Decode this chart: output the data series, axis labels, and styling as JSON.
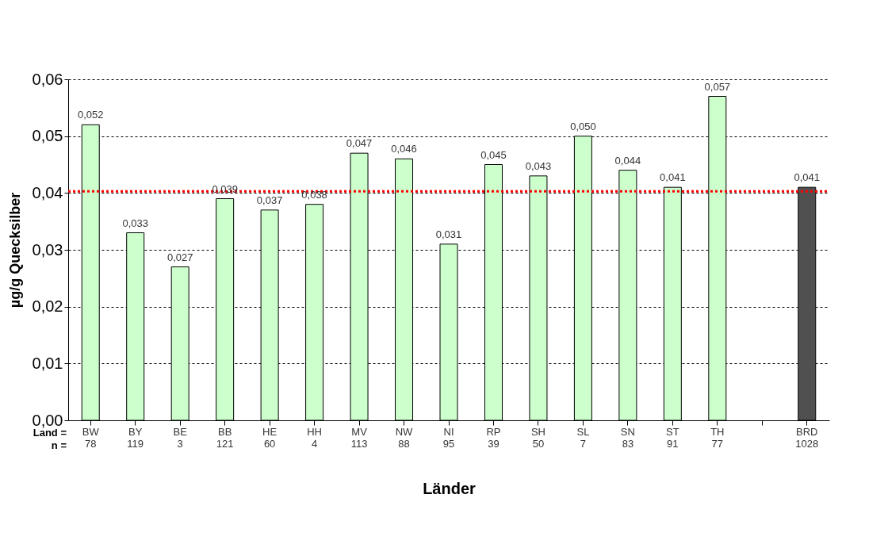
{
  "chart_data": {
    "type": "bar",
    "xlabel": "Länder",
    "ylabel": "µg/g Quecksilber",
    "categories": [
      "BW\n78",
      "BY\n119",
      "BE\n3",
      "BB\n121",
      "HE\n60",
      "HH\n4",
      "MV\n113",
      "NW\n88",
      "NI\n95",
      "RP\n39",
      "SH\n50",
      "SL\n7",
      "SN\n83",
      "ST\n91",
      "TH\n77",
      null,
      "BRD\n1028"
    ],
    "values": [
      0.052,
      0.033,
      0.027,
      0.039,
      0.037,
      0.038,
      0.047,
      0.046,
      0.031,
      0.045,
      0.043,
      0.05,
      0.044,
      0.041,
      0.057,
      null,
      0.041
    ],
    "value_labels": [
      "0,052",
      "0,033",
      "0,027",
      "0,039",
      "0,037",
      "0,038",
      "0,047",
      "0,046",
      "0,031",
      "0,045",
      "0,043",
      "0,050",
      "0,044",
      "0,041",
      "0,057",
      null,
      "0,041"
    ],
    "colors": [
      "#ccffcc",
      "#ccffcc",
      "#ccffcc",
      "#ccffcc",
      "#ccffcc",
      "#ccffcc",
      "#ccffcc",
      "#ccffcc",
      "#ccffcc",
      "#ccffcc",
      "#ccffcc",
      "#ccffcc",
      "#ccffcc",
      "#ccffcc",
      "#ccffcc",
      "#ccffcc",
      "#505050"
    ],
    "ylim": [
      0,
      0.06
    ],
    "yticks": [
      {
        "value": 0,
        "label": "0,00"
      },
      {
        "value": 0.01,
        "label": "0,01"
      },
      {
        "value": 0.02,
        "label": "0,02"
      },
      {
        "value": 0.03,
        "label": "0,03"
      },
      {
        "value": 0.04,
        "label": "0,04"
      },
      {
        "value": 0.05,
        "label": "0,05"
      },
      {
        "value": 0.06,
        "label": "0,06"
      }
    ],
    "grid": "y",
    "ref_lines": [
      {
        "axis": "y",
        "value": 0.0403,
        "color": "#ff0000",
        "line_style": "dotted"
      }
    ],
    "annotations": [
      "Land =",
      "n ="
    ]
  }
}
